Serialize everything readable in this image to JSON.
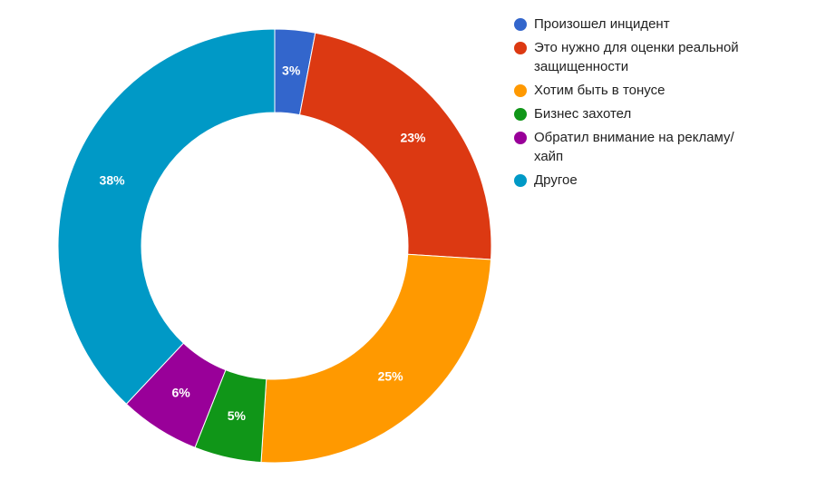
{
  "chart_data": {
    "type": "donut",
    "categories": [
      "Произошел инцидент",
      "Это нужно для оценки реальной защищенности",
      "Хотим быть в тонусе",
      "Бизнес захотел",
      "Обратил внимание на рекламу/хайп",
      "Другое"
    ],
    "values": [
      3,
      23,
      25,
      5,
      6,
      38
    ],
    "value_labels": [
      "3%",
      "23%",
      "25%",
      "5%",
      "6%",
      "38%"
    ],
    "colors": [
      "#3366cc",
      "#dc3912",
      "#ff9900",
      "#109618",
      "#990099",
      "#0099c6"
    ],
    "legend": "right"
  }
}
